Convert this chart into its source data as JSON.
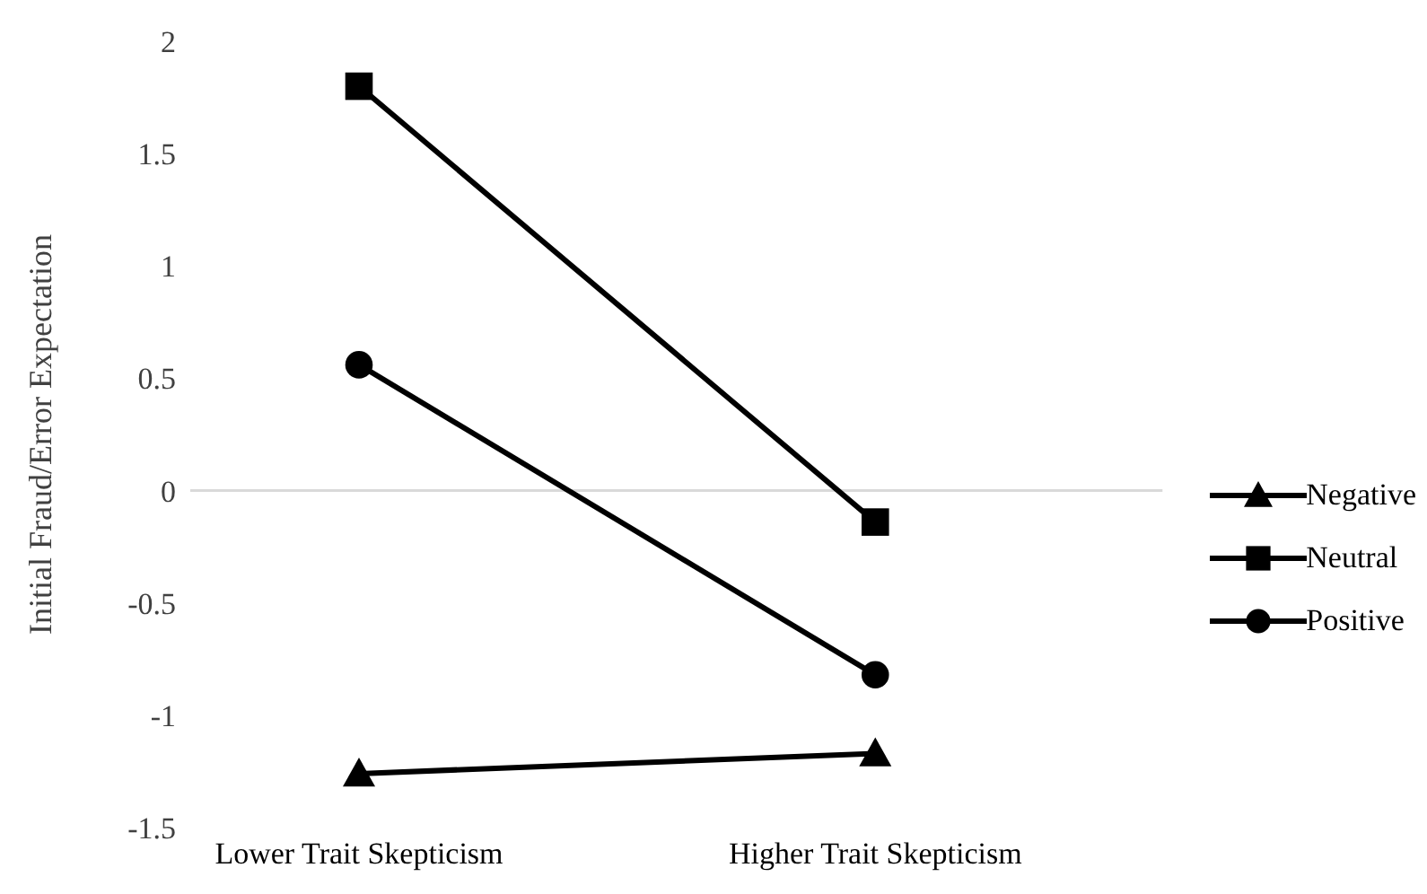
{
  "chart_data": {
    "type": "line",
    "ylabel": "Initial Fraud/Error Expectation",
    "categories": [
      "Lower Trait Skepticism",
      "Higher Trait Skepticism"
    ],
    "series": [
      {
        "name": "Negative",
        "color": "#000000",
        "marker": "triangle",
        "values": [
          -1.26,
          -1.17
        ]
      },
      {
        "name": "Neutral",
        "color": "#000000",
        "marker": "square",
        "values": [
          1.8,
          -0.14
        ]
      },
      {
        "name": "Positive",
        "color": "#000000",
        "marker": "circle",
        "values": [
          0.56,
          -0.82
        ]
      }
    ],
    "ylim": [
      -1.5,
      2
    ],
    "yticks": [
      -1.5,
      -1,
      -0.5,
      0,
      0.5,
      1,
      1.5,
      2
    ],
    "ref_lines": [
      {
        "axis": "y",
        "value": 0,
        "color": "#d9d9d9"
      }
    ],
    "legend": "right",
    "line_style": "solid"
  }
}
